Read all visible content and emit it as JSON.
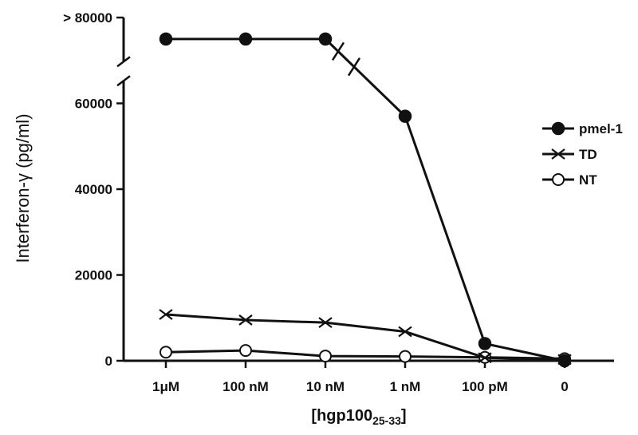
{
  "chart_data": {
    "type": "line",
    "ylabel": "Interferon-γ (pg/ml)",
    "xlabel": {
      "main": "[hgp100",
      "sub": "25-33",
      "close": "]"
    },
    "categories": [
      "1μM",
      "100 nM",
      "10 nM",
      "1 nM",
      "100 pM",
      "0"
    ],
    "ylim": [
      0,
      80000
    ],
    "yticks": [
      {
        "value": 0,
        "label": "0"
      },
      {
        "value": 20000,
        "label": "20000"
      },
      {
        "value": 40000,
        "label": "40000"
      },
      {
        "value": 60000,
        "label": "60000"
      },
      {
        "value": 80000,
        "label": "> 80000"
      }
    ],
    "axis_break": {
      "y_value": 67500
    },
    "break_on_series": "pmel-1",
    "series": [
      {
        "name": "pmel-1",
        "marker": "filled-circle",
        "values": [
          75000,
          75000,
          75000,
          57000,
          4000,
          0
        ]
      },
      {
        "name": "TD",
        "marker": "x",
        "values": [
          10800,
          9500,
          8900,
          6800,
          700,
          300
        ]
      },
      {
        "name": "NT",
        "marker": "open-circle",
        "values": [
          2000,
          2400,
          1100,
          1000,
          800,
          500
        ]
      }
    ],
    "legend": {
      "placement": "right"
    },
    "grid": false,
    "colors": {
      "line": "#111111",
      "marker_fill": "#111111",
      "open_fill": "#ffffff"
    }
  }
}
